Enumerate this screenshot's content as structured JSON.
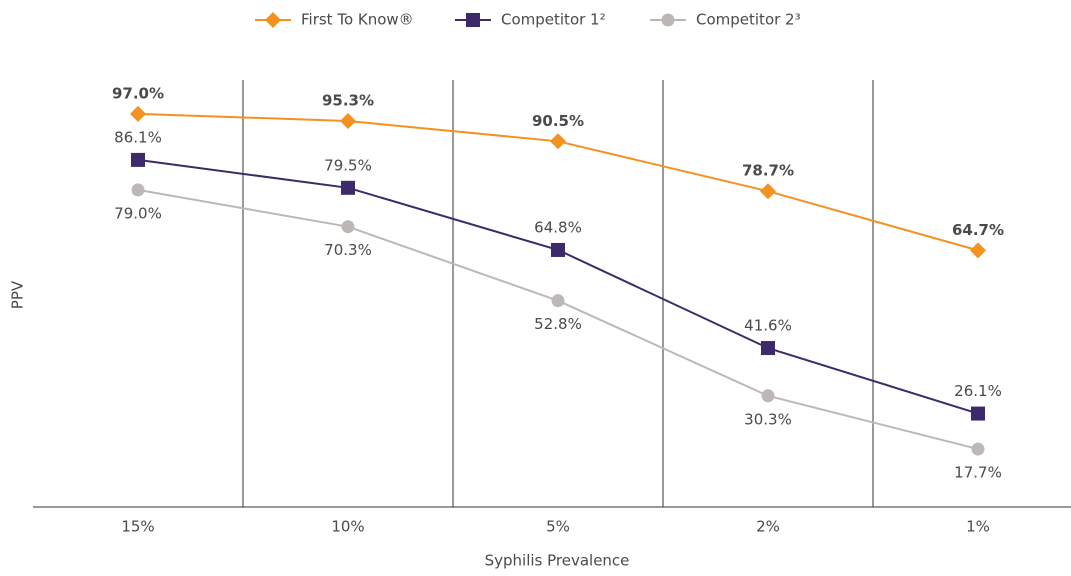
{
  "chart_data": {
    "type": "line",
    "x_label": "Syphilis Prevalence",
    "y_label": "PPV",
    "categories": [
      "15%",
      "10%",
      "5%",
      "2%",
      "1%"
    ],
    "ylim": [
      4,
      105
    ],
    "series": [
      {
        "name": "First To Know®",
        "color": "#f39221",
        "marker": "diamond",
        "values": [
          97.0,
          95.3,
          90.5,
          78.7,
          64.7
        ],
        "value_labels": [
          "97.0%",
          "95.3%",
          "90.5%",
          "78.7%",
          "64.7%"
        ]
      },
      {
        "name": "Competitor 1²",
        "color": "#3d2a6b",
        "marker": "square",
        "values": [
          86.1,
          79.5,
          64.8,
          41.6,
          26.1
        ],
        "value_labels": [
          "86.1%",
          "79.5%",
          "64.8%",
          "41.6%",
          "26.1%"
        ]
      },
      {
        "name": "Competitor 2³",
        "color": "#bdb8b6",
        "marker": "circle",
        "values": [
          79.0,
          70.3,
          52.8,
          30.3,
          17.7
        ],
        "value_labels": [
          "79.0%",
          "70.3%",
          "52.8%",
          "30.3%",
          "17.7%"
        ]
      }
    ]
  }
}
